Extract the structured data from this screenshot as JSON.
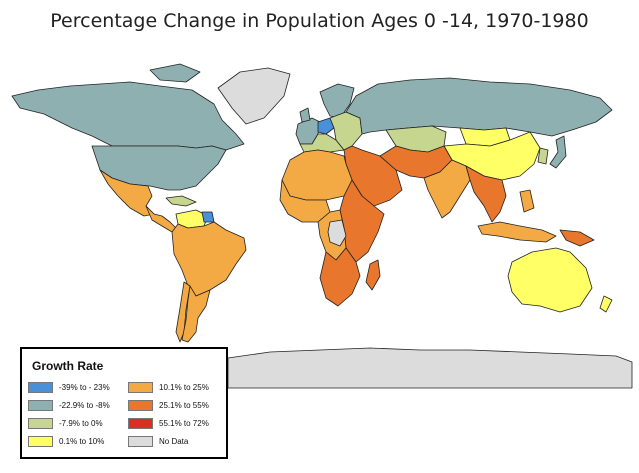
{
  "title": "Percentage Change in Population Ages 0 -14, 1970-1980",
  "colors": {
    "ocean": "#ffffff",
    "border": "#222222",
    "c_m39_m23": "#4a90d9",
    "c_m23_m8": "#8fb0b0",
    "c_m8_0": "#c6d68f",
    "c_0_10": "#ffff66",
    "c_10_25": "#f4aa44",
    "c_25_55": "#e8762c",
    "c_55_72": "#d7301f",
    "no_data": "#dcdcdc"
  },
  "legend": {
    "title": "Growth Rate",
    "items": [
      {
        "label": "-39% to - 23%",
        "color": "#4a90d9",
        "icon": "legend-swatch"
      },
      {
        "label": "-22.9% to -8%",
        "color": "#8fb0b0",
        "icon": "legend-swatch"
      },
      {
        "label": "-7.9% to 0%",
        "color": "#c6d68f",
        "icon": "legend-swatch"
      },
      {
        "label": "0.1% to 10%",
        "color": "#ffff66",
        "icon": "legend-swatch"
      },
      {
        "label": "10.1% to 25%",
        "color": "#f4aa44",
        "icon": "legend-swatch"
      },
      {
        "label": "25.1% to 55%",
        "color": "#e8762c",
        "icon": "legend-swatch"
      },
      {
        "label": "55.1% to 72%",
        "color": "#d7301f",
        "icon": "legend-swatch"
      },
      {
        "label": "No Data",
        "color": "#dcdcdc",
        "icon": "legend-swatch"
      }
    ]
  },
  "regions": [
    {
      "name": "canada",
      "class": "-22.9% to -8%"
    },
    {
      "name": "united-states",
      "class": "-22.9% to -8%"
    },
    {
      "name": "greenland",
      "class": "No Data"
    },
    {
      "name": "mexico",
      "class": "10.1% to 25%"
    },
    {
      "name": "central-america",
      "class": "10.1% to 25%"
    },
    {
      "name": "caribbean",
      "class": "-7.9% to 0%"
    },
    {
      "name": "venezuela",
      "class": "0.1% to 10%"
    },
    {
      "name": "guyana",
      "class": "-39% to - 23%"
    },
    {
      "name": "south-america",
      "class": "10.1% to 25%"
    },
    {
      "name": "argentina",
      "class": "10.1% to 25%"
    },
    {
      "name": "chile",
      "class": "10.1% to 25%"
    },
    {
      "name": "western-europe",
      "class": "-22.9% to -8%"
    },
    {
      "name": "germany",
      "class": "-39% to - 23%"
    },
    {
      "name": "scandinavia",
      "class": "-22.9% to -8%"
    },
    {
      "name": "southern-europe",
      "class": "-7.9% to 0%"
    },
    {
      "name": "eastern-europe",
      "class": "-7.9% to 0%"
    },
    {
      "name": "russia",
      "class": "-22.9% to -8%"
    },
    {
      "name": "central-asia",
      "class": "-7.9% to 0%"
    },
    {
      "name": "china",
      "class": "0.1% to 10%"
    },
    {
      "name": "mongolia",
      "class": "0.1% to 10%"
    },
    {
      "name": "korea",
      "class": "-7.9% to 0%"
    },
    {
      "name": "japan",
      "class": "-22.9% to -8%"
    },
    {
      "name": "middle-east",
      "class": "25.1% to 55%"
    },
    {
      "name": "iran-pakistan",
      "class": "25.1% to 55%"
    },
    {
      "name": "india",
      "class": "10.1% to 25%"
    },
    {
      "name": "southeast-asia",
      "class": "25.1% to 55%"
    },
    {
      "name": "indonesia",
      "class": "10.1% to 25%"
    },
    {
      "name": "new-guinea",
      "class": "25.1% to 55%"
    },
    {
      "name": "north-africa",
      "class": "10.1% to 25%"
    },
    {
      "name": "west-africa",
      "class": "10.1% to 25%"
    },
    {
      "name": "east-africa",
      "class": "25.1% to 55%"
    },
    {
      "name": "central-africa",
      "class": "10.1% to 25%"
    },
    {
      "name": "drc",
      "class": "No Data"
    },
    {
      "name": "southern-africa",
      "class": "25.1% to 55%"
    },
    {
      "name": "madagascar",
      "class": "25.1% to 55%"
    },
    {
      "name": "australia",
      "class": "0.1% to 10%"
    },
    {
      "name": "new-zealand",
      "class": "0.1% to 10%"
    },
    {
      "name": "antarctica",
      "class": "No Data"
    }
  ]
}
